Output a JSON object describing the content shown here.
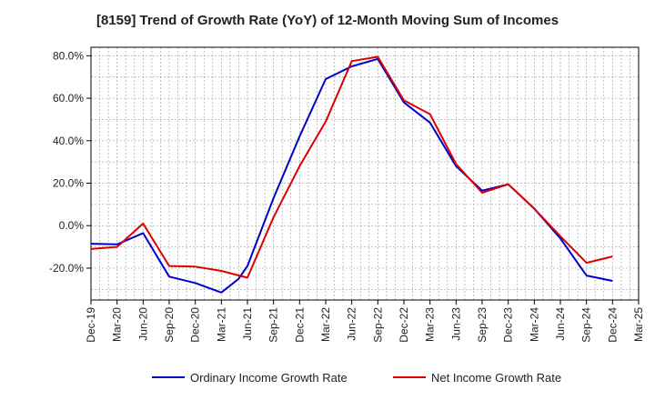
{
  "chart_data": {
    "type": "line",
    "title": "[8159]  Trend of Growth Rate (YoY) of 12-Month Moving Sum of Incomes",
    "xlabel": "",
    "ylabel": "",
    "categories": [
      "Dec-19",
      "Mar-20",
      "Jun-20",
      "Sep-20",
      "Dec-20",
      "Mar-21",
      "Jun-21",
      "Sep-21",
      "Dec-21",
      "Mar-22",
      "Jun-22",
      "Sep-22",
      "Dec-22",
      "Mar-23",
      "Jun-23",
      "Sep-23",
      "Dec-23",
      "Mar-24",
      "Jun-24",
      "Sep-24",
      "Dec-24",
      "Mar-25"
    ],
    "ylim": [
      -35,
      84
    ],
    "yticks": [
      -20,
      0,
      20,
      40,
      60,
      80
    ],
    "ytick_labels": [
      "-20.0%",
      "0.0%",
      "20.0%",
      "40.0%",
      "60.0%",
      "80.0%"
    ],
    "grid": true,
    "legend_position": "bottom",
    "series": [
      {
        "name": "Ordinary Income Growth Rate",
        "color": "#0000cc",
        "x": [
          "Dec-19",
          "Mar-20",
          "Jun-20",
          "Sep-20",
          "Dec-20",
          "Mar-21",
          "May-21",
          "Jun-21",
          "Sep-21",
          "Dec-21",
          "Mar-22",
          "Jun-22",
          "Sep-22",
          "Dec-22",
          "Mar-23",
          "Jun-23",
          "Sep-23",
          "Dec-23",
          "Mar-24",
          "Jun-24",
          "Sep-24",
          "Dec-24"
        ],
        "values": [
          -8.5,
          -8.8,
          -3.5,
          -24,
          -27,
          -31.5,
          -25,
          -19,
          13,
          42,
          69,
          75,
          78.5,
          58,
          48.5,
          28,
          16.5,
          19.5,
          8,
          -6,
          -23.5,
          -26
        ]
      },
      {
        "name": "Net Income Growth Rate",
        "color": "#dd0000",
        "x": [
          "Dec-19",
          "Mar-20",
          "Jun-20",
          "Sep-20",
          "Dec-20",
          "Mar-21",
          "Jun-21",
          "Sep-21",
          "Dec-21",
          "Mar-22",
          "Jun-22",
          "Sep-22",
          "Dec-22",
          "Mar-23",
          "Jun-23",
          "Sep-23",
          "Dec-23",
          "Mar-24",
          "Jun-24",
          "Sep-24",
          "Dec-24"
        ],
        "values": [
          -11,
          -10,
          1,
          -19,
          -19.3,
          -21.3,
          -24.5,
          4,
          28,
          49,
          77.5,
          79.5,
          59,
          52.5,
          29,
          15.5,
          19.5,
          8,
          -5,
          -17.5,
          -14.5
        ]
      }
    ]
  }
}
